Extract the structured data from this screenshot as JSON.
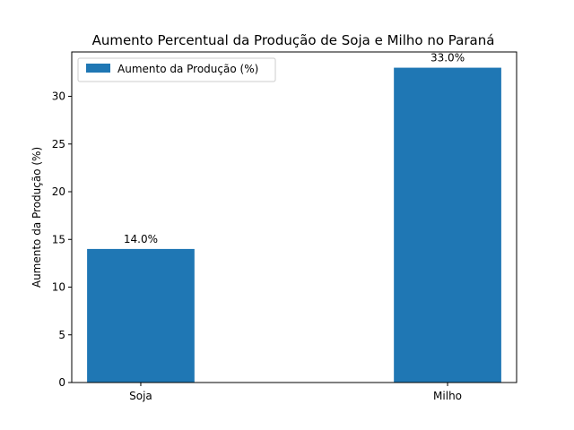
{
  "chart_data": {
    "type": "bar",
    "title": "Aumento Percentual da Produção de Soja e Milho no Paraná",
    "xlabel": "",
    "ylabel": "Aumento da Produção (%)",
    "categories": [
      "Soja",
      "Milho"
    ],
    "series": [
      {
        "name": "Aumento da Produção (%)",
        "values": [
          14.0,
          33.0
        ],
        "color": "#1f77b4"
      }
    ],
    "data_labels": [
      "14.0%",
      "33.0%"
    ],
    "ylim": [
      0,
      34.65
    ],
    "yticks": [
      0,
      5,
      10,
      15,
      20,
      25,
      30
    ],
    "grid": false,
    "legend_position": "upper-left"
  }
}
